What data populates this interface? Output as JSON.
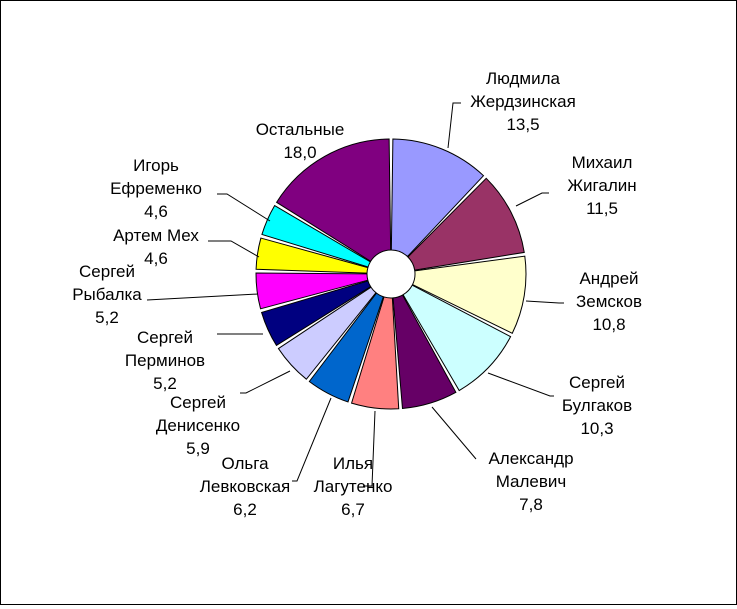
{
  "chart_data": {
    "type": "pie",
    "exploded": true,
    "slices": [
      {
        "lines": [
          "Людмила",
          "Жердзинская",
          "13,5"
        ],
        "value": 13.5,
        "color": "#9999ff"
      },
      {
        "lines": [
          "Михаил",
          "Жигалин",
          "11,5"
        ],
        "value": 11.5,
        "color": "#993366"
      },
      {
        "lines": [
          "Андрей",
          "Земсков",
          "10,8"
        ],
        "value": 10.8,
        "color": "#ffffcc"
      },
      {
        "lines": [
          "Сергей",
          "Булгаков",
          "10,3"
        ],
        "value": 10.3,
        "color": "#ccffff"
      },
      {
        "lines": [
          "Александр",
          "Малевич",
          "7,8"
        ],
        "value": 7.8,
        "color": "#660066"
      },
      {
        "lines": [
          "Илья",
          "Лагутенко",
          "6,7"
        ],
        "value": 6.7,
        "color": "#ff8080"
      },
      {
        "lines": [
          "Ольга",
          "Левковская",
          "6,2"
        ],
        "value": 6.2,
        "color": "#0066cc"
      },
      {
        "lines": [
          "Сергей",
          "Денисенко",
          "5,9"
        ],
        "value": 5.9,
        "color": "#ccccff"
      },
      {
        "lines": [
          "Сергей",
          "Перминов",
          "5,2"
        ],
        "value": 5.2,
        "color": "#000080"
      },
      {
        "lines": [
          "Сергей",
          "Рыбалка",
          "5,2"
        ],
        "value": 5.2,
        "color": "#ff00ff"
      },
      {
        "lines": [
          "Артем Мех",
          "4,6"
        ],
        "value": 4.6,
        "color": "#ffff00"
      },
      {
        "lines": [
          "Игорь",
          "Ефременко",
          "4,6"
        ],
        "value": 4.6,
        "color": "#00ffff"
      },
      {
        "lines": [
          "Остальные",
          "18,0"
        ],
        "value": 18.0,
        "color": "#800080"
      }
    ]
  }
}
